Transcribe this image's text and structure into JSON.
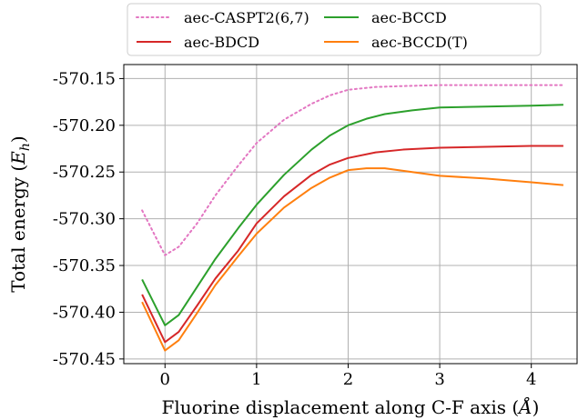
{
  "chart_data": {
    "type": "line",
    "xlabel": "Fluorine displacement along C-F axis (Å)",
    "ylabel": "Total energy (E_h)",
    "xlim": [
      -0.45,
      4.5
    ],
    "ylim": [
      -570.455,
      -570.135
    ],
    "xticks": [
      0,
      1,
      2,
      3,
      4
    ],
    "yticks": [
      -570.15,
      -570.2,
      -570.25,
      -570.3,
      -570.35,
      -570.4,
      -570.45
    ],
    "ytick_labels": [
      "-570.15",
      "-570.20",
      "-570.25",
      "-570.30",
      "-570.35",
      "-570.40",
      "-570.45"
    ],
    "grid": true,
    "legend_position": "top, outside, two columns",
    "series": [
      {
        "name": "aec-CASPT2(6,7)",
        "color": "#e377c2",
        "style": "dotted",
        "x": [
          -0.25,
          0.0,
          0.15,
          0.35,
          0.55,
          0.8,
          1.0,
          1.3,
          1.6,
          1.8,
          2.0,
          2.3,
          2.6,
          3.0,
          3.5,
          4.0,
          4.35
        ],
        "y": [
          -570.291,
          -570.339,
          -570.33,
          -570.305,
          -570.275,
          -570.243,
          -570.219,
          -570.194,
          -570.177,
          -570.168,
          -570.162,
          -570.159,
          -570.158,
          -570.157,
          -570.157,
          -570.157,
          -570.157
        ]
      },
      {
        "name": "aec-BDCD",
        "color": "#d62728",
        "style": "solid",
        "x": [
          -0.25,
          0.0,
          0.15,
          0.35,
          0.55,
          0.8,
          1.0,
          1.3,
          1.6,
          1.8,
          2.0,
          2.3,
          2.6,
          3.0,
          3.5,
          4.0,
          4.35
        ],
        "y": [
          -570.381,
          -570.432,
          -570.421,
          -570.393,
          -570.364,
          -570.334,
          -570.305,
          -570.276,
          -570.253,
          -570.242,
          -570.235,
          -570.229,
          -570.226,
          -570.224,
          -570.223,
          -570.222,
          -570.222
        ]
      },
      {
        "name": "aec-BCCD",
        "color": "#2ca02c",
        "style": "solid",
        "x": [
          -0.25,
          0.0,
          0.15,
          0.35,
          0.55,
          0.8,
          1.0,
          1.3,
          1.6,
          1.8,
          2.0,
          2.2,
          2.4,
          2.7,
          3.0,
          3.5,
          4.0,
          4.35
        ],
        "y": [
          -570.365,
          -570.414,
          -570.403,
          -570.373,
          -570.343,
          -570.31,
          -570.285,
          -570.253,
          -570.226,
          -570.211,
          -570.2,
          -570.193,
          -570.188,
          -570.184,
          -570.181,
          -570.18,
          -570.179,
          -570.178
        ]
      },
      {
        "name": "aec-BCCD(T)",
        "color": "#ff7f0e",
        "style": "solid",
        "x": [
          -0.25,
          0.0,
          0.15,
          0.35,
          0.55,
          0.8,
          1.0,
          1.3,
          1.6,
          1.8,
          2.0,
          2.2,
          2.4,
          2.7,
          3.0,
          3.5,
          4.0,
          4.35
        ],
        "y": [
          -570.389,
          -570.441,
          -570.43,
          -570.401,
          -570.371,
          -570.34,
          -570.316,
          -570.288,
          -570.267,
          -570.256,
          -570.248,
          -570.246,
          -570.246,
          -570.25,
          -570.254,
          -570.257,
          -570.261,
          -570.264
        ]
      }
    ]
  }
}
